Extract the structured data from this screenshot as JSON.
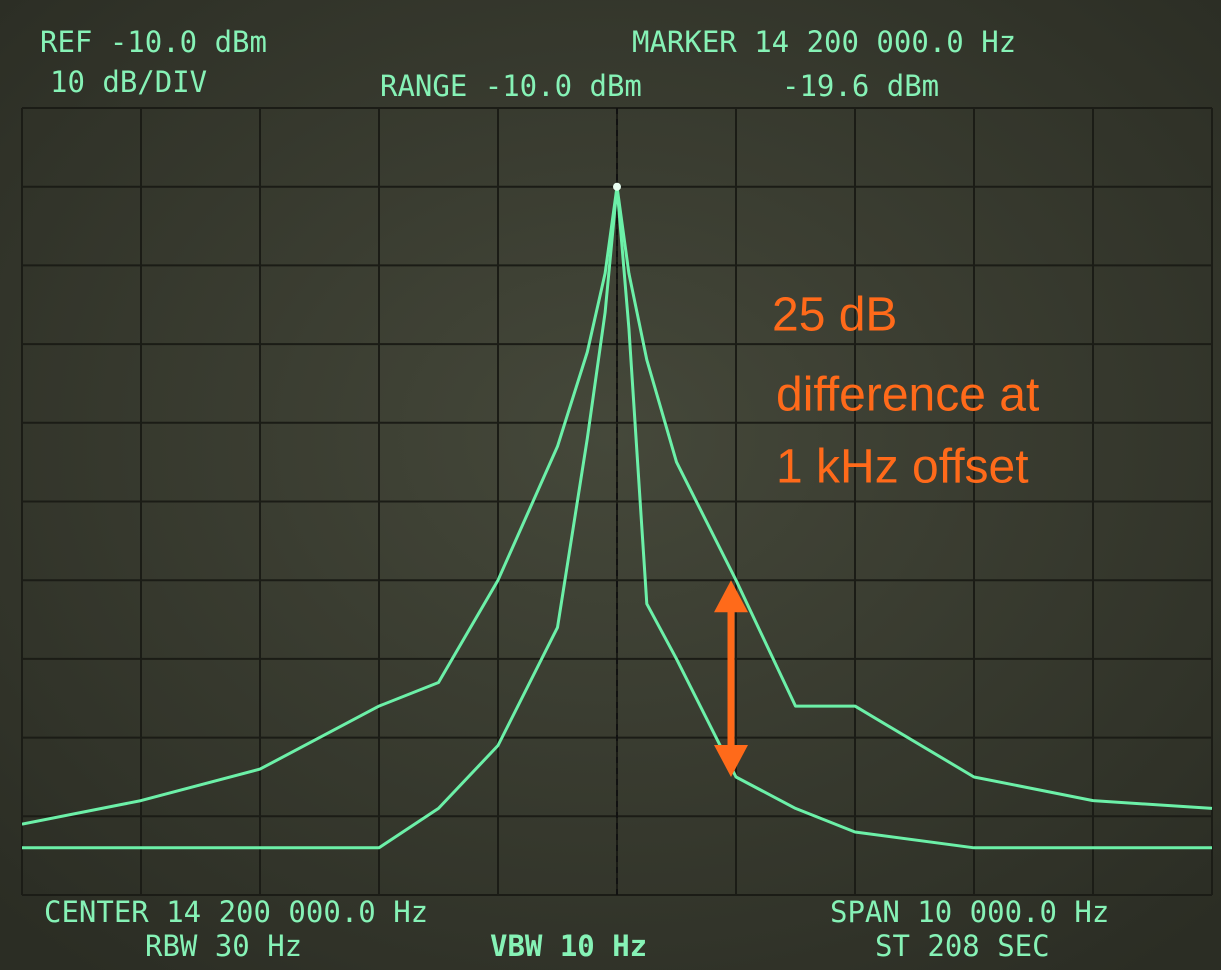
{
  "chart_data": {
    "type": "line",
    "texts": {
      "ref": "REF -10.0 dBm",
      "scale": "10 dB/DIV",
      "range": "RANGE -10.0 dBm",
      "marker": "MARKER 14 200 000.0 Hz",
      "marker_level": "-19.6 dBm",
      "center": "CENTER 14 200 000.0 Hz",
      "span": "SPAN 10 000.0 Hz",
      "rbw": "RBW 30 Hz",
      "vbw": "VBW 10 Hz",
      "sweep": "ST 208 SEC"
    },
    "annotation": [
      " 25 dB",
      "difference at",
      "1 kHz offset"
    ],
    "x": [
      14195000,
      14196000,
      14197000,
      14198000,
      14198500,
      14199000,
      14199500,
      14199750,
      14199900,
      14200000,
      14200100,
      14200250,
      14200500,
      14201000,
      14201500,
      14202000,
      14203000,
      14204000,
      14205000
    ],
    "series": [
      {
        "color": "#6cf0a8",
        "values": [
          -101,
          -98,
          -94,
          -86,
          -83,
          -70,
          -53,
          -41,
          -31,
          -20,
          -31,
          -42,
          -55,
          -70,
          -86,
          -86,
          -95,
          -98,
          -99
        ]
      },
      {
        "color": "#6cf0a8",
        "values": [
          -104,
          -104,
          -104,
          -104,
          -99,
          -91,
          -76,
          -52,
          -36,
          -20,
          -38,
          -73,
          -80,
          -95,
          -99,
          -102,
          -104,
          -104,
          -104
        ]
      }
    ],
    "xlim": [
      14195000,
      14205000
    ],
    "ylim": [
      -110,
      -10
    ],
    "annotation_color": "#ff6a1a"
  }
}
